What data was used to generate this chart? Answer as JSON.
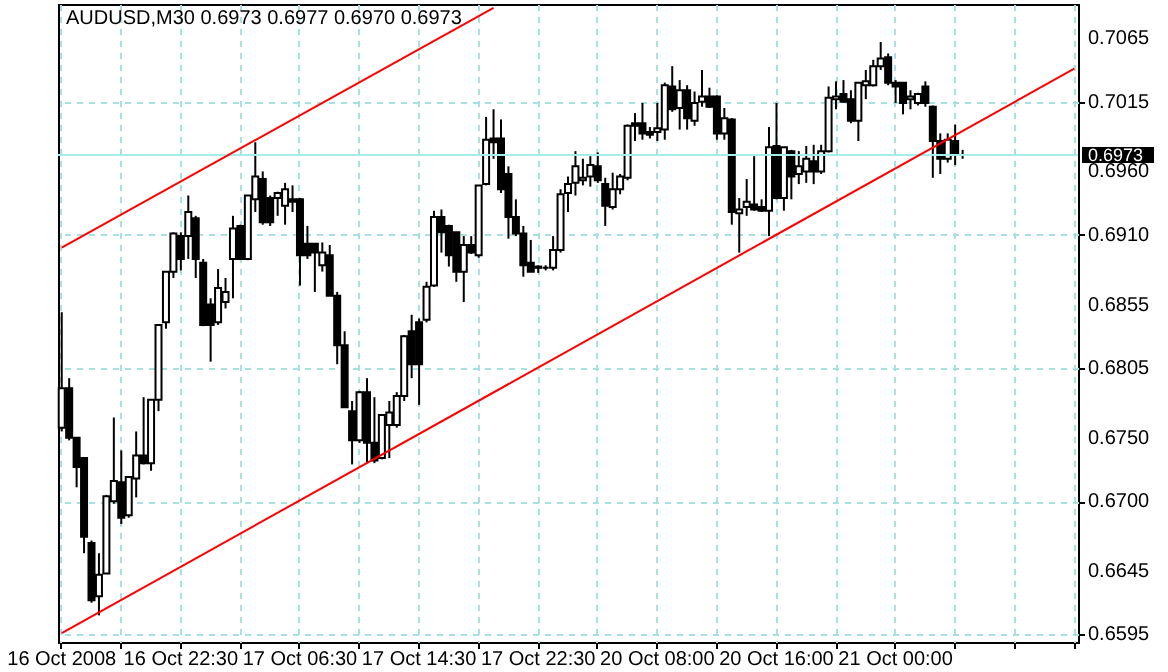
{
  "chart_data": {
    "type": "candlestick",
    "title": "AUDUSD,M30  0.6973 0.6977 0.6970 0.6973",
    "categories": [
      "16 Oct 2008",
      null,
      null,
      null,
      null,
      null,
      null,
      null,
      null,
      null,
      null,
      null,
      null,
      null,
      null,
      null,
      "16 Oct 22:30",
      null,
      null,
      null,
      null,
      null,
      null,
      null,
      null,
      null,
      null,
      null,
      null,
      null,
      null,
      null,
      "17 Oct 06:30",
      null,
      null,
      null,
      null,
      null,
      null,
      null,
      null,
      null,
      null,
      null,
      null,
      null,
      null,
      null,
      "17 Oct 14:30",
      null,
      null,
      null,
      null,
      null,
      null,
      null,
      null,
      null,
      null,
      null,
      null,
      null,
      null,
      null,
      "17 Oct 22:30",
      null,
      null,
      null,
      null,
      null,
      null,
      null,
      null,
      null,
      null,
      null,
      null,
      null,
      null,
      null,
      "20 Oct 08:00",
      null,
      null,
      null,
      null,
      null,
      null,
      null,
      null,
      null,
      null,
      null,
      null,
      null,
      null,
      null,
      "20 Oct 16:00",
      null,
      null,
      null,
      null,
      null,
      null,
      null,
      null,
      null,
      null,
      null,
      null,
      null,
      null,
      null,
      "21 Oct 00:00",
      null,
      null,
      null,
      null,
      null,
      null,
      null,
      null,
      null,
      null,
      null,
      null,
      null,
      null,
      null,
      null,
      null,
      null,
      null,
      null,
      null,
      null,
      null,
      null
    ],
    "ohlc": [
      [
        0.6758,
        0.6849,
        0.6755,
        0.6789
      ],
      [
        0.6789,
        0.6797,
        0.6748,
        0.675
      ],
      [
        0.675,
        0.675,
        0.6711,
        0.6727
      ],
      [
        0.6734,
        0.6734,
        0.6659,
        0.6672
      ],
      [
        0.6667,
        0.6669,
        0.662,
        0.6622
      ],
      [
        0.6625,
        0.6659,
        0.661,
        0.6642
      ],
      [
        0.6643,
        0.6705,
        0.6643,
        0.6704
      ],
      [
        0.67,
        0.6766,
        0.6698,
        0.6716
      ],
      [
        0.6715,
        0.674,
        0.6682,
        0.6687
      ],
      [
        0.6689,
        0.6719,
        0.6687,
        0.6719
      ],
      [
        0.6718,
        0.6755,
        0.6703,
        0.6736
      ],
      [
        0.6736,
        0.6782,
        0.6729,
        0.673
      ],
      [
        0.673,
        0.678,
        0.6724,
        0.678
      ],
      [
        0.678,
        0.6839,
        0.6771,
        0.6839
      ],
      [
        0.6841,
        0.6881,
        0.6836,
        0.6881
      ],
      [
        0.6881,
        0.6912,
        0.6876,
        0.6911
      ],
      [
        0.6909,
        0.6912,
        0.6882,
        0.6891
      ],
      [
        0.6909,
        0.6941,
        0.6891,
        0.6928
      ],
      [
        0.6923,
        0.6925,
        0.6876,
        0.6891
      ],
      [
        0.6888,
        0.6891,
        0.6838,
        0.6839
      ],
      [
        0.6855,
        0.686,
        0.681,
        0.6839
      ],
      [
        0.6841,
        0.6883,
        0.6839,
        0.6868
      ],
      [
        0.6857,
        0.6876,
        0.6852,
        0.6865
      ],
      [
        0.6891,
        0.6925,
        0.686,
        0.6915
      ],
      [
        0.6917,
        0.6918,
        0.6891,
        0.6891
      ],
      [
        0.6891,
        0.6941,
        0.689,
        0.6941
      ],
      [
        0.6938,
        0.6983,
        0.6928,
        0.6956
      ],
      [
        0.6954,
        0.696,
        0.6918,
        0.692
      ],
      [
        0.6939,
        0.6941,
        0.6917,
        0.692
      ],
      [
        0.6939,
        0.6944,
        0.6925,
        0.6943
      ],
      [
        0.6933,
        0.6951,
        0.6918,
        0.6946
      ],
      [
        0.6938,
        0.6949,
        0.6928,
        0.6936
      ],
      [
        0.6938,
        0.6939,
        0.687,
        0.6894
      ],
      [
        0.6903,
        0.6917,
        0.6891,
        0.6894
      ],
      [
        0.6903,
        0.6903,
        0.6865,
        0.6896
      ],
      [
        0.6886,
        0.6904,
        0.6881,
        0.6896
      ],
      [
        0.6894,
        0.6902,
        0.6862,
        0.6862
      ],
      [
        0.6862,
        0.6865,
        0.6808,
        0.6823
      ],
      [
        0.6823,
        0.6834,
        0.6774,
        0.6774
      ],
      [
        0.6771,
        0.6779,
        0.6729,
        0.6748
      ],
      [
        0.6748,
        0.6787,
        0.6746,
        0.6786
      ],
      [
        0.6786,
        0.6797,
        0.673,
        0.6746
      ],
      [
        0.6746,
        0.6782,
        0.673,
        0.6732
      ],
      [
        0.6734,
        0.6768,
        0.6733,
        0.6768
      ],
      [
        0.676,
        0.6779,
        0.6734,
        0.677
      ],
      [
        0.676,
        0.6786,
        0.6758,
        0.6783
      ],
      [
        0.6783,
        0.6831,
        0.6779,
        0.683
      ],
      [
        0.6834,
        0.6847,
        0.6797,
        0.6808
      ],
      [
        0.6841,
        0.6844,
        0.6776,
        0.6808
      ],
      [
        0.6843,
        0.6873,
        0.6841,
        0.6869
      ],
      [
        0.687,
        0.6929,
        0.6869,
        0.6924
      ],
      [
        0.6924,
        0.693,
        0.6896,
        0.6912
      ],
      [
        0.6917,
        0.6918,
        0.6885,
        0.6894
      ],
      [
        0.6912,
        0.6912,
        0.6873,
        0.6881
      ],
      [
        0.6881,
        0.6909,
        0.6857,
        0.6902
      ],
      [
        0.6902,
        0.6909,
        0.6895,
        0.6896
      ],
      [
        0.6894,
        0.6949,
        0.6892,
        0.6949
      ],
      [
        0.695,
        0.7003,
        0.6949,
        0.6985
      ],
      [
        0.6986,
        0.7009,
        0.697,
        0.6983
      ],
      [
        0.6986,
        0.7001,
        0.6943,
        0.6946
      ],
      [
        0.6958,
        0.6964,
        0.6907,
        0.6924
      ],
      [
        0.6924,
        0.6938,
        0.6909,
        0.6911
      ],
      [
        0.6911,
        0.6917,
        0.6877,
        0.6886
      ],
      [
        0.6888,
        0.6906,
        0.6881,
        0.6881
      ],
      [
        0.6885,
        0.6886,
        0.688,
        0.6884
      ],
      [
        0.6884,
        0.6886,
        0.6882,
        0.6884
      ],
      [
        0.6884,
        0.6909,
        0.6882,
        0.6898
      ],
      [
        0.6898,
        0.6946,
        0.6896,
        0.6942
      ],
      [
        0.6943,
        0.6956,
        0.6928,
        0.695
      ],
      [
        0.6951,
        0.6976,
        0.6941,
        0.6964
      ],
      [
        0.6953,
        0.697,
        0.6949,
        0.6955
      ],
      [
        0.6956,
        0.6972,
        0.6948,
        0.6965
      ],
      [
        0.6964,
        0.6975,
        0.6951,
        0.6953
      ],
      [
        0.695,
        0.6955,
        0.6917,
        0.6933
      ],
      [
        0.6932,
        0.6959,
        0.693,
        0.6946
      ],
      [
        0.6946,
        0.6958,
        0.6942,
        0.6956
      ],
      [
        0.6955,
        0.6997,
        0.6953,
        0.6996
      ],
      [
        0.6998,
        0.7006,
        0.6984,
        0.6996
      ],
      [
        0.6998,
        0.7014,
        0.6985,
        0.699
      ],
      [
        0.6991,
        0.6995,
        0.6986,
        0.6989
      ],
      [
        0.6991,
        0.7014,
        0.6984,
        0.6994
      ],
      [
        0.6993,
        0.703,
        0.6985,
        0.7028
      ],
      [
        0.7027,
        0.7043,
        0.7007,
        0.7009
      ],
      [
        0.701,
        0.7032,
        0.6993,
        0.7024
      ],
      [
        0.7024,
        0.7028,
        0.6993,
        0.7002
      ],
      [
        0.7,
        0.7023,
        0.6996,
        0.7014
      ],
      [
        0.7015,
        0.704,
        0.7011,
        0.7019
      ],
      [
        0.7019,
        0.7026,
        0.701,
        0.7011
      ],
      [
        0.7019,
        0.702,
        0.6985,
        0.699
      ],
      [
        0.699,
        0.701,
        0.6985,
        0.7002
      ],
      [
        0.7001,
        0.7002,
        0.6918,
        0.6928
      ],
      [
        0.6927,
        0.6939,
        0.6896,
        0.693
      ],
      [
        0.6932,
        0.6954,
        0.6925,
        0.6936
      ],
      [
        0.6934,
        0.6972,
        0.6929,
        0.693
      ],
      [
        0.6932,
        0.6938,
        0.6928,
        0.6929
      ],
      [
        0.6929,
        0.6995,
        0.6909,
        0.6979
      ],
      [
        0.698,
        0.7014,
        0.6938,
        0.6939
      ],
      [
        0.6939,
        0.6979,
        0.6929,
        0.6979
      ],
      [
        0.6976,
        0.6977,
        0.6938,
        0.6956
      ],
      [
        0.6958,
        0.6976,
        0.695,
        0.6964
      ],
      [
        0.696,
        0.698,
        0.6951,
        0.697
      ],
      [
        0.6968,
        0.6981,
        0.695,
        0.696
      ],
      [
        0.696,
        0.6981,
        0.6958,
        0.6976
      ],
      [
        0.6976,
        0.7027,
        0.6975,
        0.7018
      ],
      [
        0.7017,
        0.7031,
        0.7009,
        0.7019
      ],
      [
        0.7021,
        0.7032,
        0.7014,
        0.7015
      ],
      [
        0.7017,
        0.7024,
        0.6998,
        0.7
      ],
      [
        0.7,
        0.703,
        0.6984,
        0.703
      ],
      [
        0.7028,
        0.704,
        0.7017,
        0.7031
      ],
      [
        0.7028,
        0.7048,
        0.7027,
        0.7043
      ],
      [
        0.7043,
        0.7062,
        0.704,
        0.7049
      ],
      [
        0.705,
        0.7053,
        0.7028,
        0.703
      ],
      [
        0.703,
        0.7032,
        0.7014,
        0.7027
      ],
      [
        0.703,
        0.703,
        0.7005,
        0.7014
      ],
      [
        0.7017,
        0.7024,
        0.7009,
        0.7019
      ],
      [
        0.7014,
        0.7022,
        0.7012,
        0.7021
      ],
      [
        0.7027,
        0.7031,
        0.7011,
        0.7014
      ],
      [
        0.7011,
        0.7012,
        0.6955,
        0.6984
      ],
      [
        0.6984,
        0.699,
        0.6958,
        0.697
      ],
      [
        0.697,
        0.699,
        0.6967,
        0.6985
      ],
      [
        0.6984,
        0.6997,
        0.6965,
        0.6973
      ],
      [
        0.6973,
        0.6977,
        0.697,
        0.6973
      ],
      null,
      null,
      null,
      null,
      null,
      null,
      null,
      null,
      null,
      null,
      null,
      null,
      null,
      null,
      null
    ],
    "series": [
      {
        "type": "line",
        "color": "#ff0000",
        "values": [
          0.6596,
          null,
          null,
          null,
          null,
          null,
          null,
          null,
          null,
          null,
          null,
          null,
          null,
          null,
          null,
          null,
          null,
          null,
          null,
          null,
          null,
          null,
          null,
          null,
          null,
          null,
          null,
          null,
          null,
          null,
          null,
          null,
          null,
          null,
          null,
          null,
          null,
          null,
          null,
          null,
          null,
          null,
          null,
          null,
          null,
          null,
          null,
          null,
          null,
          null,
          null,
          null,
          null,
          null,
          null,
          null,
          null,
          null,
          null,
          null,
          null,
          null,
          null,
          null,
          null,
          null,
          null,
          null,
          null,
          null,
          null,
          null,
          null,
          null,
          null,
          null,
          null,
          null,
          null,
          null,
          null,
          null,
          null,
          null,
          null,
          null,
          null,
          null,
          null,
          null,
          null,
          null,
          null,
          null,
          null,
          null,
          null,
          null,
          null,
          null,
          null,
          null,
          null,
          null,
          null,
          null,
          null,
          null,
          null,
          null,
          null,
          null,
          null,
          null,
          null,
          null,
          null,
          null,
          null,
          null,
          null,
          null,
          null,
          null,
          null,
          null,
          null,
          null,
          null,
          null,
          null,
          null,
          null,
          null,
          null,
          null,
          0.7041
        ]
      },
      {
        "type": "line",
        "color": "#ff0000",
        "values": [
          0.69,
          null,
          null,
          null,
          null,
          null,
          null,
          null,
          null,
          null,
          null,
          null,
          null,
          null,
          null,
          null,
          null,
          null,
          null,
          null,
          null,
          null,
          null,
          null,
          null,
          null,
          null,
          null,
          null,
          null,
          null,
          null,
          null,
          null,
          null,
          null,
          null,
          null,
          null,
          null,
          null,
          null,
          null,
          null,
          null,
          null,
          null,
          null,
          null,
          null,
          null,
          null,
          null,
          null,
          null,
          null,
          null,
          null,
          0.7089,
          null,
          null,
          null,
          null,
          null,
          null,
          null,
          null,
          null,
          null,
          null,
          null,
          null,
          null,
          null,
          null,
          null,
          null,
          null,
          null,
          null,
          null,
          null,
          null,
          null,
          null,
          null,
          null,
          null,
          null,
          null,
          null,
          null,
          null,
          null,
          null,
          null,
          null,
          null,
          null,
          null,
          null,
          null,
          null,
          null,
          null,
          null,
          null,
          null,
          null,
          null,
          null,
          null,
          null,
          null,
          null,
          null,
          null,
          null,
          null,
          null,
          null,
          null,
          null,
          null,
          null,
          null,
          null,
          null,
          null,
          null,
          null,
          null,
          null,
          null,
          null,
          null,
          null
        ]
      }
    ],
    "ylim": [
      0.6589,
      0.7092
    ],
    "yticks": [
      0.6595,
      0.6645,
      {
        "value": 0.67,
        "label": "0.6700"
      },
      {
        "value": 0.675,
        "label": "0.6750"
      },
      0.6805,
      0.6855,
      {
        "value": 0.691,
        "label": "0.6910"
      },
      {
        "value": 0.696,
        "label": "0.6960"
      },
      0.7015,
      0.7065
    ],
    "ref_lines": [
      {
        "axis": "y",
        "value": 0.6973,
        "label": "0.6973",
        "color": "#a6ecec"
      }
    ],
    "grid": true
  }
}
